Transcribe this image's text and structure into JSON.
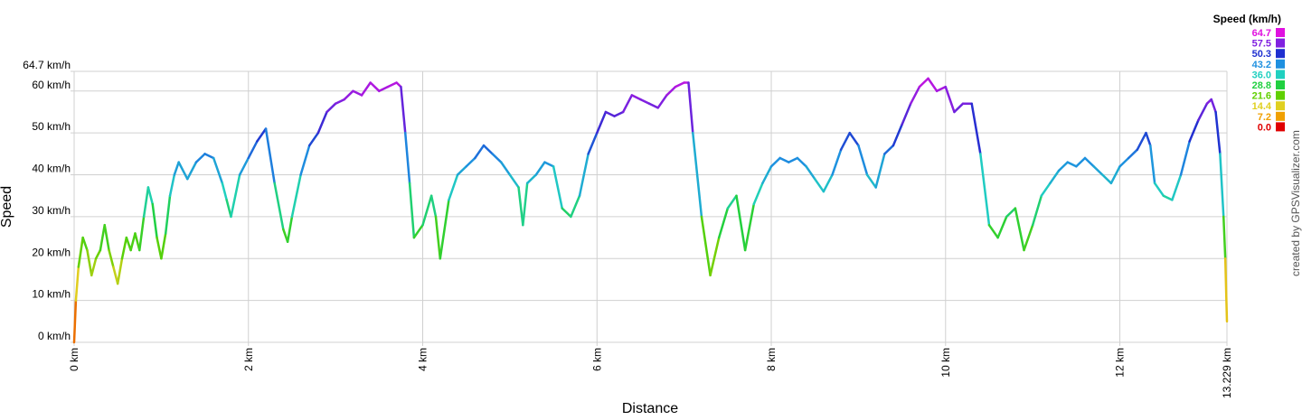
{
  "chart_data": {
    "type": "line",
    "xlabel": "Distance",
    "ylabel": "Speed",
    "credit": "created by GPSVisualizer.com",
    "xlim": [
      0,
      13.229
    ],
    "ylim": [
      0,
      64.7
    ],
    "xticks": [
      {
        "value": 0,
        "label": "0 km"
      },
      {
        "value": 2,
        "label": "2 km"
      },
      {
        "value": 4,
        "label": "4 km"
      },
      {
        "value": 6,
        "label": "6 km"
      },
      {
        "value": 8,
        "label": "8 km"
      },
      {
        "value": 10,
        "label": "10 km"
      },
      {
        "value": 12,
        "label": "12 km"
      },
      {
        "value": 13.229,
        "label": "13.229 km"
      }
    ],
    "yticks": [
      {
        "value": 0,
        "label": "0 km/h"
      },
      {
        "value": 10,
        "label": "10 km/h"
      },
      {
        "value": 20,
        "label": "20 km/h"
      },
      {
        "value": 30,
        "label": "30 km/h"
      },
      {
        "value": 40,
        "label": "40 km/h"
      },
      {
        "value": 50,
        "label": "50 km/h"
      },
      {
        "value": 60,
        "label": "60 km/h"
      },
      {
        "value": 64.7,
        "label": "64.7 km/h"
      }
    ],
    "grid": true,
    "legend": {
      "title": "Speed (km/h)",
      "items": [
        {
          "value": 64.7,
          "color": "#e010e0"
        },
        {
          "value": 57.5,
          "color": "#8020e0"
        },
        {
          "value": 50.3,
          "color": "#1f2fd0"
        },
        {
          "value": 43.2,
          "color": "#1e90e0"
        },
        {
          "value": {
            "value": 36,
            "label": "36.0"
          },
          "color": "#20d0c0"
        },
        {
          "value": 28.8,
          "color": "#20d040"
        },
        {
          "value": 21.6,
          "color": "#60d000"
        },
        {
          "value": 14.4,
          "color": "#e0d020"
        },
        {
          "value": 7.2,
          "color": "#f0a000"
        },
        {
          "value": {
            "value": 0,
            "label": "0.0"
          },
          "color": "#e00000"
        }
      ]
    },
    "x": [
      0,
      0.02,
      0.05,
      0.1,
      0.15,
      0.2,
      0.25,
      0.3,
      0.35,
      0.4,
      0.45,
      0.5,
      0.55,
      0.6,
      0.65,
      0.7,
      0.75,
      0.8,
      0.85,
      0.9,
      0.95,
      1.0,
      1.05,
      1.1,
      1.15,
      1.2,
      1.3,
      1.4,
      1.5,
      1.6,
      1.7,
      1.75,
      1.8,
      1.9,
      2.0,
      2.1,
      2.2,
      2.3,
      2.4,
      2.45,
      2.5,
      2.6,
      2.7,
      2.8,
      2.9,
      3.0,
      3.1,
      3.2,
      3.3,
      3.4,
      3.5,
      3.6,
      3.7,
      3.75,
      3.8,
      3.85,
      3.9,
      4.0,
      4.1,
      4.15,
      4.2,
      4.3,
      4.4,
      4.5,
      4.6,
      4.7,
      4.8,
      4.9,
      5.0,
      5.1,
      5.15,
      5.2,
      5.3,
      5.4,
      5.5,
      5.6,
      5.7,
      5.8,
      5.9,
      6.0,
      6.1,
      6.2,
      6.3,
      6.4,
      6.5,
      6.6,
      6.7,
      6.8,
      6.9,
      7.0,
      7.05,
      7.1,
      7.2,
      7.3,
      7.4,
      7.5,
      7.6,
      7.7,
      7.8,
      7.9,
      8.0,
      8.1,
      8.2,
      8.3,
      8.4,
      8.5,
      8.6,
      8.7,
      8.8,
      8.9,
      9.0,
      9.1,
      9.2,
      9.3,
      9.4,
      9.5,
      9.6,
      9.7,
      9.8,
      9.9,
      10.0,
      10.1,
      10.2,
      10.3,
      10.4,
      10.5,
      10.6,
      10.7,
      10.8,
      10.9,
      11.0,
      11.1,
      11.2,
      11.3,
      11.4,
      11.5,
      11.6,
      11.7,
      11.8,
      11.9,
      12.0,
      12.1,
      12.2,
      12.3,
      12.35,
      12.4,
      12.5,
      12.6,
      12.7,
      12.8,
      12.9,
      13.0,
      13.05,
      13.1,
      13.15,
      13.19,
      13.21,
      13.229
    ],
    "y": [
      0,
      10,
      18,
      25,
      22,
      16,
      20,
      22,
      28,
      22,
      18,
      14,
      20,
      25,
      22,
      26,
      22,
      30,
      37,
      33,
      25,
      20,
      26,
      35,
      40,
      43,
      39,
      43,
      45,
      44,
      38,
      34,
      30,
      40,
      44,
      48,
      51,
      38,
      27,
      24,
      30,
      40,
      47,
      50,
      55,
      57,
      58,
      60,
      59,
      62,
      60,
      61,
      62,
      61,
      50,
      38,
      25,
      28,
      35,
      30,
      20,
      34,
      40,
      42,
      44,
      47,
      45,
      43,
      40,
      37,
      28,
      38,
      40,
      43,
      42,
      32,
      30,
      35,
      45,
      50,
      55,
      54,
      55,
      59,
      58,
      57,
      56,
      59,
      61,
      62,
      62,
      50,
      30,
      16,
      25,
      32,
      35,
      22,
      33,
      38,
      42,
      44,
      43,
      44,
      42,
      39,
      36,
      40,
      46,
      50,
      47,
      40,
      37,
      45,
      47,
      52,
      57,
      61,
      63,
      60,
      61,
      55,
      57,
      57,
      45,
      28,
      25,
      30,
      32,
      22,
      28,
      35,
      38,
      41,
      43,
      42,
      44,
      42,
      40,
      38,
      42,
      44,
      46,
      50,
      47,
      38,
      35,
      34,
      40,
      48,
      53,
      57,
      58,
      55,
      45,
      30,
      20,
      5
    ]
  }
}
